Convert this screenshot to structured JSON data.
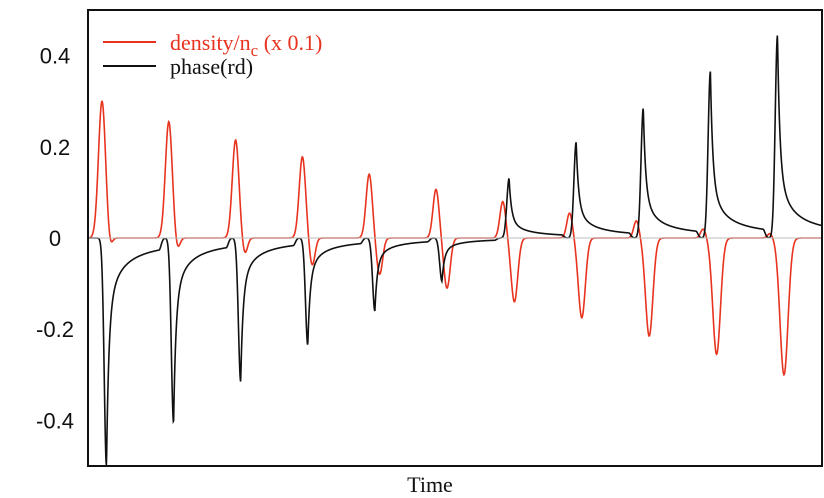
{
  "chart_data": {
    "type": "line",
    "title": "",
    "xlabel": "Time",
    "ylabel": "",
    "ylim": [
      -0.5,
      0.5
    ],
    "yticks": [
      0.4,
      0.2,
      0,
      -0.2,
      -0.4
    ],
    "ytick_labels": [
      "0.4",
      "0.2",
      "0",
      "-0.2",
      "-0.4"
    ],
    "grid": false,
    "zero_line": true,
    "legend_position": "top-left",
    "colors": {
      "density": "#e8331f",
      "phase": "#111111"
    },
    "legend": [
      {
        "base": "density/n",
        "sub": "c",
        "rest": " (x 0.1)"
      },
      {
        "text": "phase(rd)"
      }
    ],
    "series": [
      {
        "name": "density/n_c (x 0.1)",
        "cycles": [
          {
            "peak": 0.3,
            "trough": -0.02
          },
          {
            "peak": 0.255,
            "trough": -0.025
          },
          {
            "peak": 0.215,
            "trough": -0.035
          },
          {
            "peak": 0.178,
            "trough": -0.06
          },
          {
            "peak": 0.14,
            "trough": -0.08
          },
          {
            "peak": 0.107,
            "trough": -0.11
          },
          {
            "peak": 0.08,
            "trough": -0.14
          },
          {
            "peak": 0.055,
            "trough": -0.175
          },
          {
            "peak": 0.038,
            "trough": -0.215
          },
          {
            "peak": 0.02,
            "trough": -0.255
          },
          {
            "peak": 0.01,
            "trough": -0.3
          }
        ]
      },
      {
        "name": "phase(rd)",
        "cycles": [
          {
            "peak": 0.0,
            "trough": -0.5
          },
          {
            "peak": 0.0,
            "trough": -0.405
          },
          {
            "peak": 0.0,
            "trough": -0.315
          },
          {
            "peak": 0.0,
            "trough": -0.235
          },
          {
            "peak": 0.0,
            "trough": -0.16
          },
          {
            "peak": 0.055,
            "trough": -0.095
          },
          {
            "peak": 0.13,
            "trough": -0.01
          },
          {
            "peak": 0.21,
            "trough": 0.0
          },
          {
            "peak": 0.285,
            "trough": 0.0
          },
          {
            "peak": 0.365,
            "trough": 0.0
          },
          {
            "peak": 0.445,
            "trough": 0.0
          }
        ]
      }
    ]
  }
}
